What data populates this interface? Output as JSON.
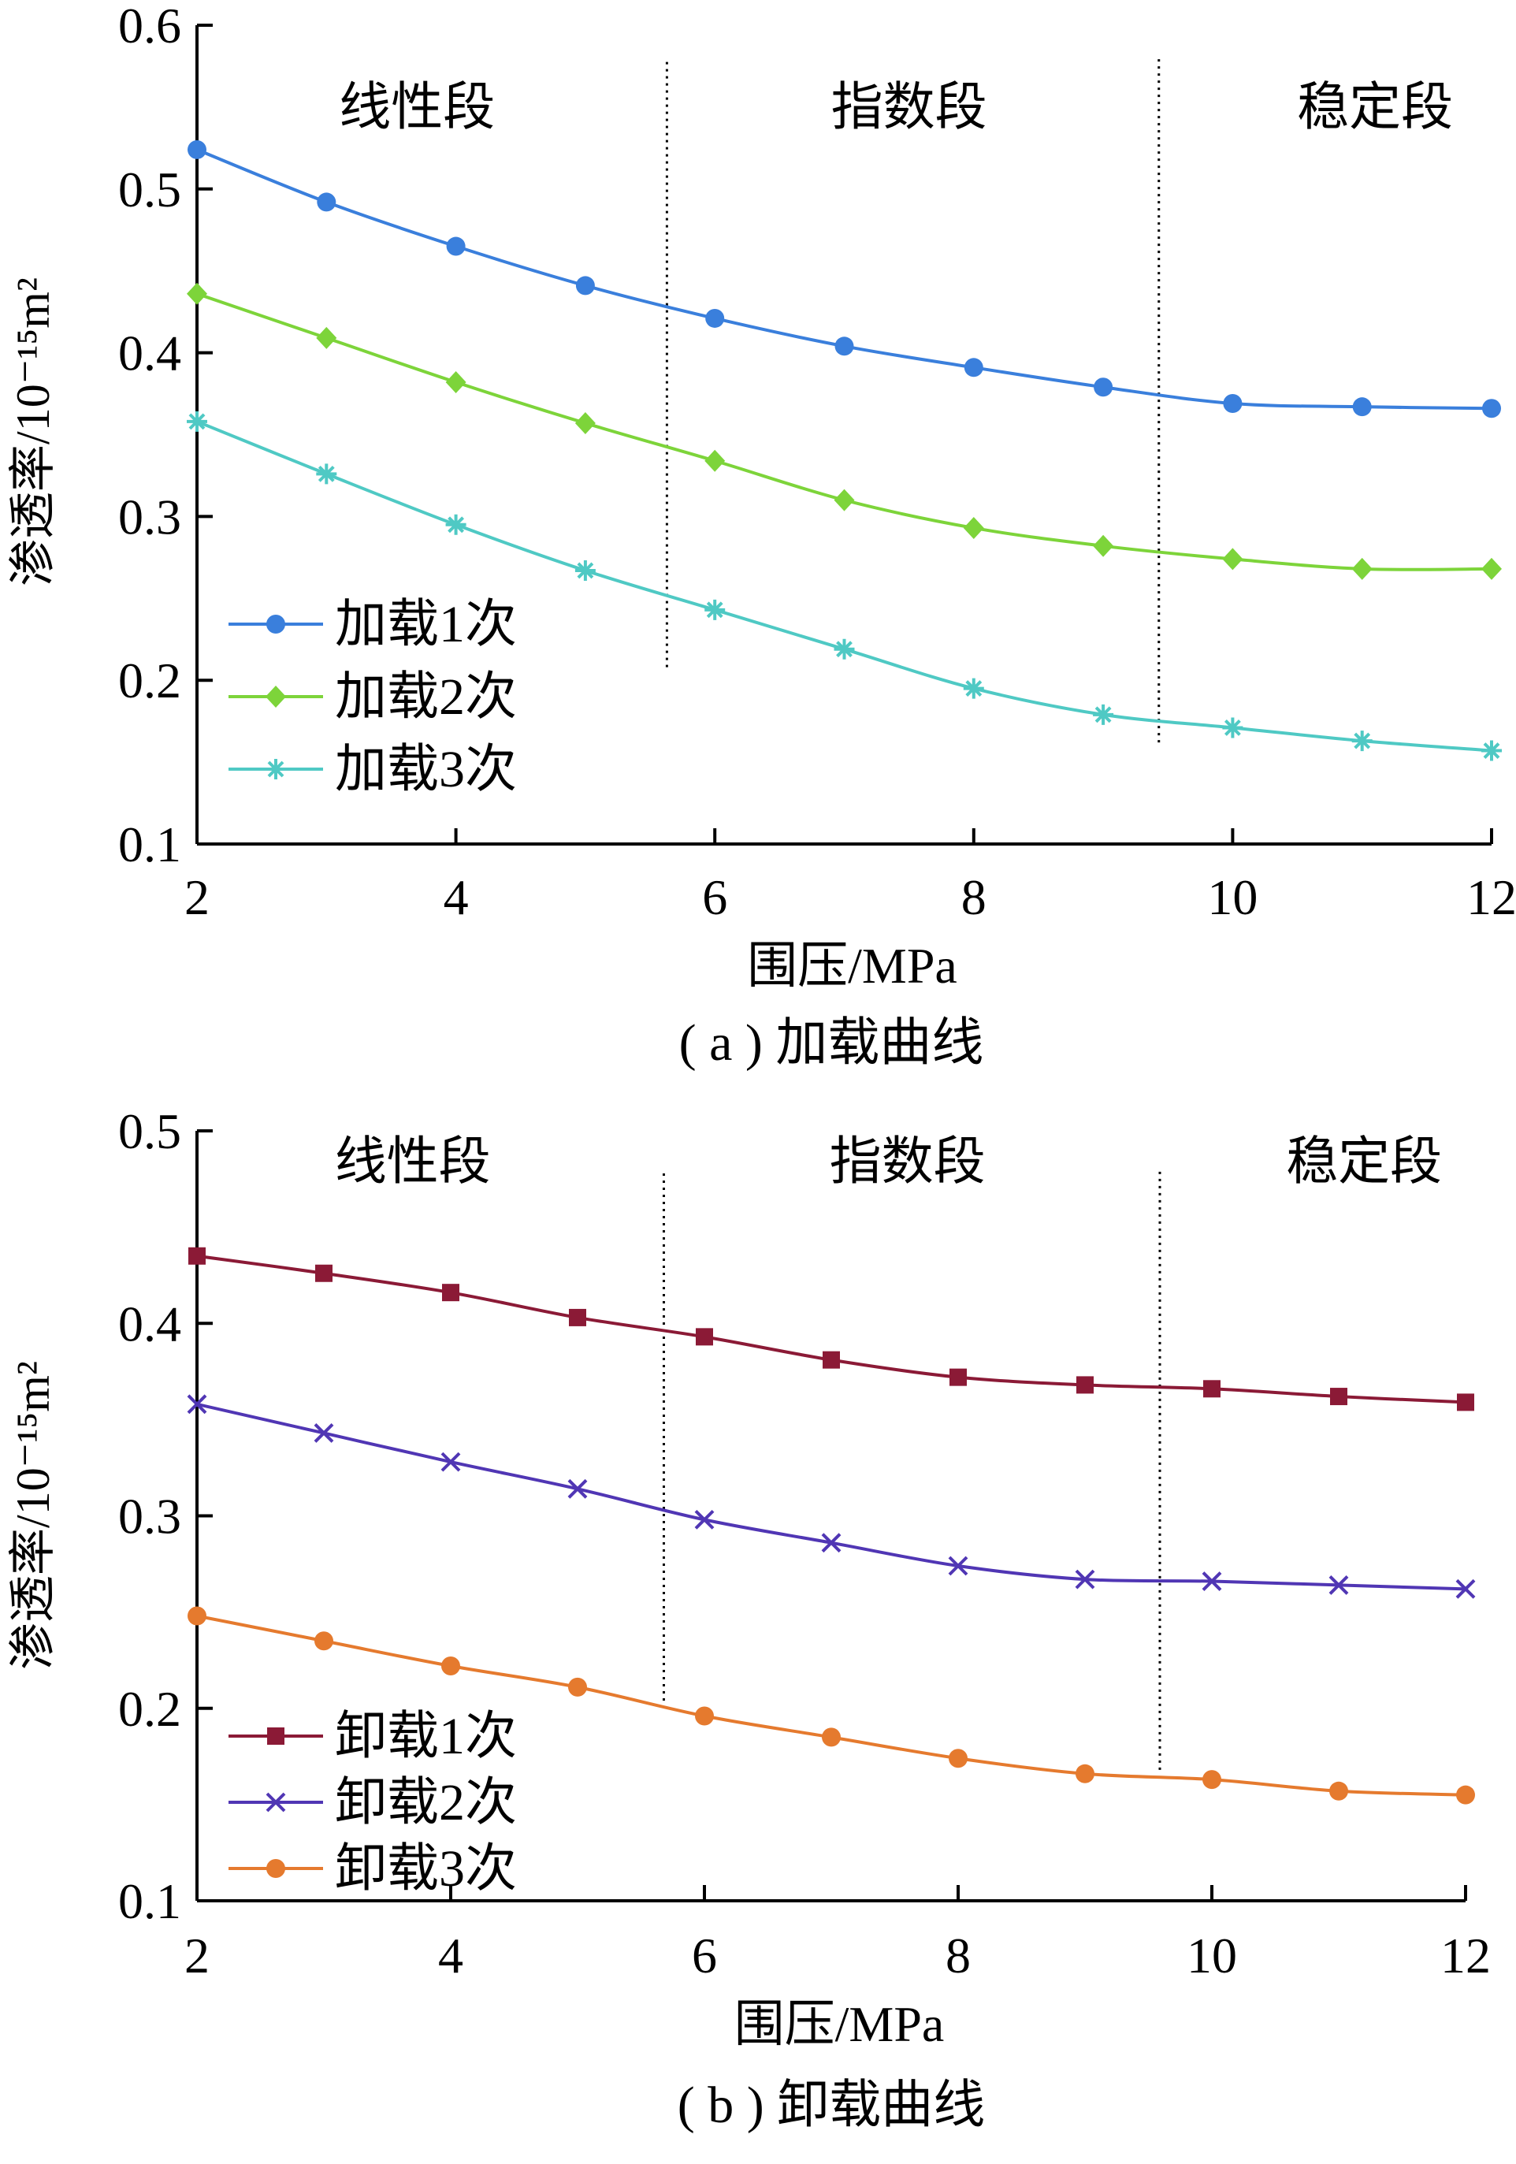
{
  "chart_data": [
    {
      "type": "line",
      "caption": "( a ) 加载曲线",
      "xlabel": "围压/MPa",
      "ylabel": "渗透率/10⁻¹⁵m²",
      "xlim": [
        2,
        12
      ],
      "ylim": [
        0.1,
        0.6
      ],
      "xticks": [
        2,
        4,
        6,
        8,
        10,
        12
      ],
      "xtick_labels": [
        "2",
        "4",
        "6",
        "8",
        "10",
        "12"
      ],
      "yticks": [
        0.1,
        0.2,
        0.3,
        0.4,
        0.5,
        0.6
      ],
      "ytick_labels": [
        "0.1",
        "0.2",
        "0.3",
        "0.4",
        "0.5",
        "0.6"
      ],
      "grid": false,
      "legend_position": "lower-left",
      "regions": [
        {
          "label": "线性段",
          "x_center": 3.7
        },
        {
          "label": "指数段",
          "x_center": 7.5
        },
        {
          "label": "稳定段",
          "x_center": 11.1
        }
      ],
      "dividers": [
        {
          "x": 5.63,
          "y_range": [
            0.208,
            0.58
          ]
        },
        {
          "x": 9.43,
          "y_range": [
            0.162,
            0.58
          ]
        }
      ],
      "x": [
        2,
        3,
        4,
        5,
        6,
        7,
        8,
        9,
        10,
        11,
        12
      ],
      "series": [
        {
          "name": "加载1次",
          "color": "#3a7fdc",
          "marker": "circle",
          "values": [
            0.524,
            0.492,
            0.465,
            0.441,
            0.421,
            0.404,
            0.391,
            0.379,
            0.369,
            0.367,
            0.366
          ]
        },
        {
          "name": "加载2次",
          "color": "#7dd43a",
          "marker": "diamond",
          "values": [
            0.436,
            0.409,
            0.382,
            0.357,
            0.334,
            0.31,
            0.293,
            0.282,
            0.274,
            0.268,
            0.268
          ]
        },
        {
          "name": "加载3次",
          "color": "#4fc9c4",
          "marker": "asterisk",
          "values": [
            0.358,
            0.326,
            0.295,
            0.267,
            0.243,
            0.219,
            0.195,
            0.179,
            0.171,
            0.163,
            0.157
          ]
        }
      ]
    },
    {
      "type": "line",
      "caption": "( b ) 卸载曲线",
      "xlabel": "围压/MPa",
      "ylabel": "渗透率/10⁻¹⁵m²",
      "xlim": [
        2,
        12
      ],
      "ylim": [
        0.1,
        0.5
      ],
      "xticks": [
        2,
        4,
        6,
        8,
        10,
        12
      ],
      "xtick_labels": [
        "2",
        "4",
        "6",
        "8",
        "10",
        "12"
      ],
      "yticks": [
        0.1,
        0.2,
        0.3,
        0.4,
        0.5
      ],
      "ytick_labels": [
        "0.1",
        "0.2",
        "0.3",
        "0.4",
        "0.5"
      ],
      "grid": false,
      "legend_position": "lower-left",
      "regions": [
        {
          "label": "线性段",
          "x_center": 3.7
        },
        {
          "label": "指数段",
          "x_center": 7.6
        },
        {
          "label": "稳定段",
          "x_center": 11.2
        }
      ],
      "dividers": [
        {
          "x": 5.68,
          "y_range": [
            0.204,
            0.48
          ]
        },
        {
          "x": 9.59,
          "y_range": [
            0.168,
            0.48
          ]
        }
      ],
      "x": [
        2,
        3,
        4,
        5,
        6,
        7,
        8,
        9,
        10,
        11,
        12
      ],
      "series": [
        {
          "name": "卸载1次",
          "color": "#8b1a36",
          "marker": "square",
          "values": [
            0.435,
            0.426,
            0.416,
            0.403,
            0.393,
            0.381,
            0.372,
            0.368,
            0.366,
            0.362,
            0.359
          ]
        },
        {
          "name": "卸载2次",
          "color": "#5036b4",
          "marker": "x",
          "values": [
            0.358,
            0.343,
            0.328,
            0.314,
            0.298,
            0.286,
            0.274,
            0.267,
            0.266,
            0.264,
            0.262
          ]
        },
        {
          "name": "卸载3次",
          "color": "#e57a2e",
          "marker": "circle",
          "values": [
            0.248,
            0.235,
            0.222,
            0.211,
            0.196,
            0.185,
            0.174,
            0.166,
            0.163,
            0.157,
            0.155
          ]
        }
      ]
    }
  ]
}
